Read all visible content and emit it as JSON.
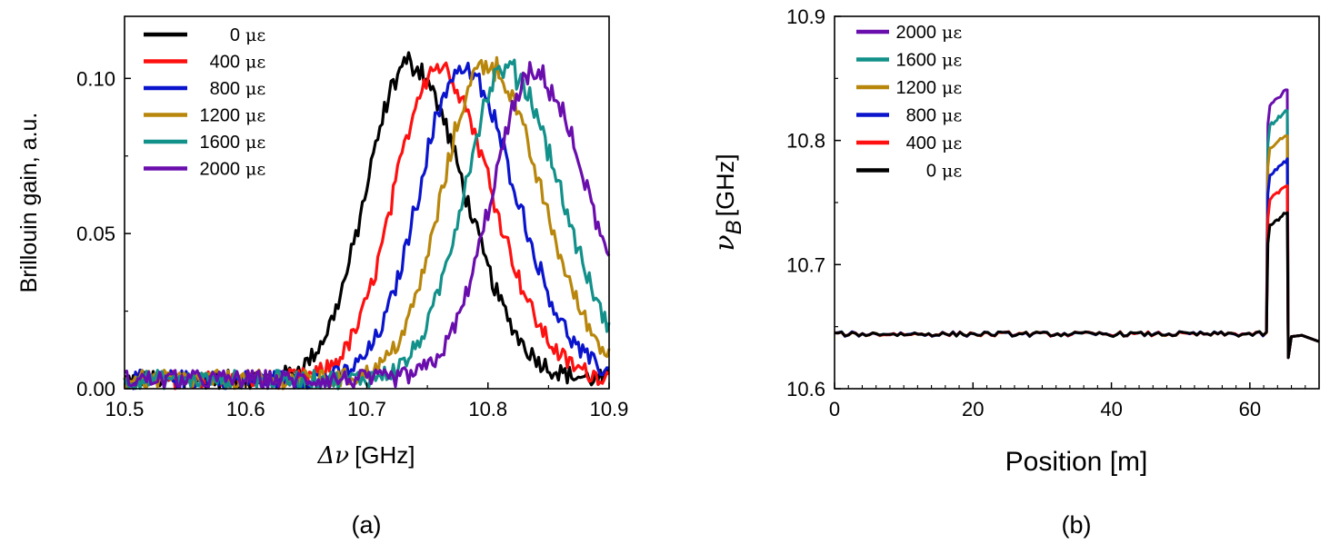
{
  "colors": {
    "0": "#000000",
    "400": "#ff1010",
    "800": "#0a14cc",
    "1200": "#b8860b",
    "1600": "#12908a",
    "2000": "#6a0dad"
  },
  "chart_data": [
    {
      "id": "a",
      "type": "line",
      "caption": "(a)",
      "xlabel_symbol": "Δν",
      "xlabel_unit": "[GHz]",
      "ylabel": "Brillouin gain, a.u.",
      "xlim": [
        10.5,
        10.9
      ],
      "ylim": [
        0.0,
        0.12
      ],
      "xticks": [
        10.5,
        10.6,
        10.7,
        10.8,
        10.9
      ],
      "xtick_labels": [
        "10.5",
        "10.6",
        "10.7",
        "10.8",
        "10.9"
      ],
      "yticks": [
        0.0,
        0.05,
        0.1
      ],
      "ytick_labels": [
        "0.00",
        "0.05",
        "0.10"
      ],
      "legend_position": "top-left",
      "legend_unit": "με",
      "series": [
        {
          "name": "0",
          "color_key": "0",
          "center": 10.735,
          "peak": 0.102,
          "sigma_left": 0.035,
          "sigma_right": 0.045,
          "base": 0.003
        },
        {
          "name": "400",
          "color_key": "400",
          "center": 10.758,
          "peak": 0.101,
          "sigma_left": 0.035,
          "sigma_right": 0.045,
          "base": 0.003
        },
        {
          "name": "800",
          "color_key": "800",
          "center": 10.778,
          "peak": 0.1,
          "sigma_left": 0.035,
          "sigma_right": 0.045,
          "base": 0.003
        },
        {
          "name": "1200",
          "color_key": "1200",
          "center": 10.798,
          "peak": 0.102,
          "sigma_left": 0.035,
          "sigma_right": 0.045,
          "base": 0.003
        },
        {
          "name": "1600",
          "color_key": "1600",
          "center": 10.815,
          "peak": 0.1,
          "sigma_left": 0.035,
          "sigma_right": 0.045,
          "base": 0.003
        },
        {
          "name": "2000",
          "color_key": "2000",
          "center": 10.838,
          "peak": 0.098,
          "sigma_left": 0.035,
          "sigma_right": 0.045,
          "base": 0.003
        }
      ]
    },
    {
      "id": "b",
      "type": "line",
      "caption": "(b)",
      "xlabel": "Position [m]",
      "ylabel_symbol": "ν",
      "ylabel_sub": "B",
      "ylabel_unit": "[GHz]",
      "xlim": [
        0,
        70
      ],
      "ylim": [
        10.6,
        10.9
      ],
      "xticks": [
        0,
        20,
        40,
        60
      ],
      "xtick_labels": [
        "0",
        "20",
        "40",
        "60"
      ],
      "yticks": [
        10.6,
        10.7,
        10.8,
        10.9
      ],
      "ytick_labels": [
        "10.6",
        "10.7",
        "10.8",
        "10.9"
      ],
      "legend_position": "top-left",
      "legend_unit": "με",
      "baseline": 10.644,
      "step_start": 62.4,
      "step_rise_end": 62.9,
      "step_end": 65.4,
      "dip_value": 10.625,
      "tail_value": 10.638,
      "series": [
        {
          "name": "2000",
          "color_key": "2000",
          "plateau_start": 10.828,
          "plateau_end": 10.842
        },
        {
          "name": "1600",
          "color_key": "1600",
          "plateau_start": 10.812,
          "plateau_end": 10.825
        },
        {
          "name": "1200",
          "color_key": "1200",
          "plateau_start": 10.794,
          "plateau_end": 10.805
        },
        {
          "name": "800",
          "color_key": "800",
          "plateau_start": 10.772,
          "plateau_end": 10.784
        },
        {
          "name": "400",
          "color_key": "400",
          "plateau_start": 10.752,
          "plateau_end": 10.765
        },
        {
          "name": "0",
          "color_key": "0",
          "plateau_start": 10.732,
          "plateau_end": 10.742
        }
      ]
    }
  ]
}
